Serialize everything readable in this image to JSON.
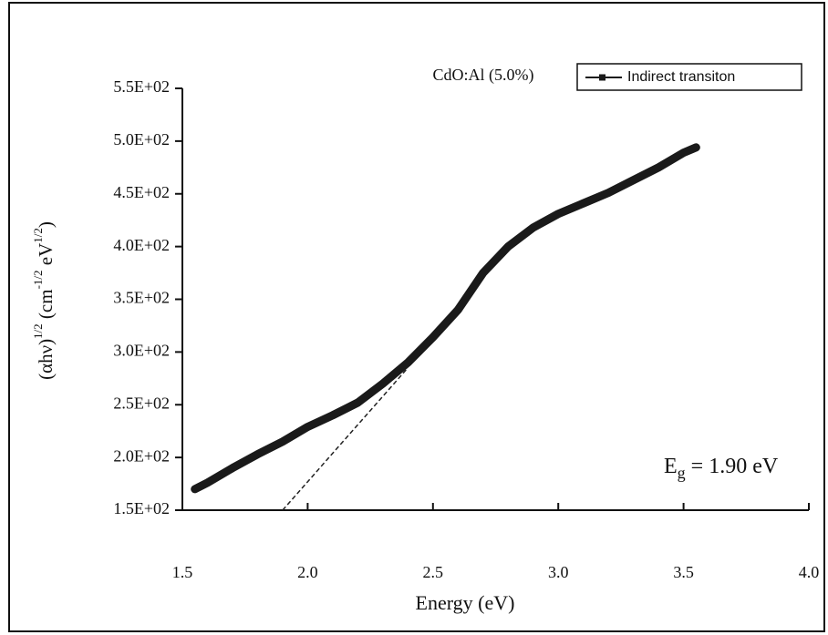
{
  "chart_data": {
    "type": "line",
    "annotation": "CdO:Al (5.0%)",
    "band_gap": {
      "symbol": "E",
      "subscript": "g",
      "text": "= 1.90 eV"
    },
    "x_label": "Energy (eV)",
    "y_label": [
      {
        "text": "(αhν)",
        "sup": false
      },
      {
        "text": "1/2",
        "sup": true
      },
      {
        "text": " (cm",
        "sup": false
      },
      {
        "text": "-1/2",
        "sup": true
      },
      {
        "text": " eV",
        "sup": false
      },
      {
        "text": "1/2",
        "sup": true
      },
      {
        "text": ")",
        "sup": false
      }
    ],
    "x": [
      1.55,
      1.6,
      1.7,
      1.8,
      1.9,
      2.0,
      2.1,
      2.2,
      2.3,
      2.4,
      2.5,
      2.6,
      2.7,
      2.8,
      2.9,
      3.0,
      3.1,
      3.2,
      3.3,
      3.4,
      3.5,
      3.55
    ],
    "series": [
      {
        "name": "Indirect transiton",
        "color": "#1a1a1a",
        "values": [
          170,
          176,
          190,
          203,
          215,
          229,
          240,
          252,
          270,
          290,
          314,
          340,
          375,
          400,
          418,
          431,
          441,
          451,
          463,
          475,
          489,
          494
        ]
      }
    ],
    "fit_line": {
      "x": [
        1.9,
        2.4
      ],
      "values": [
        150,
        285
      ],
      "color": "#222222"
    },
    "xlim": [
      1.5,
      4.0
    ],
    "xticks": [
      1.5,
      {
        "value": 2,
        "label": "2.0"
      },
      2.5,
      {
        "value": 3,
        "label": "3.0"
      },
      3.5,
      {
        "value": 4,
        "label": "4.0"
      }
    ],
    "ylim": [
      150,
      550
    ],
    "yticks": [
      {
        "value": 150,
        "label": "1.5E+02"
      },
      {
        "value": 200,
        "label": "2.0E+02"
      },
      {
        "value": 250,
        "label": "2.5E+02"
      },
      {
        "value": 300,
        "label": "3.0E+02"
      },
      {
        "value": 350,
        "label": "3.5E+02"
      },
      {
        "value": 400,
        "label": "4.0E+02"
      },
      {
        "value": 450,
        "label": "4.5E+02"
      },
      {
        "value": 500,
        "label": "5.0E+02"
      },
      {
        "value": 550,
        "label": "5.5E+02"
      }
    ],
    "legend": "top-right"
  }
}
